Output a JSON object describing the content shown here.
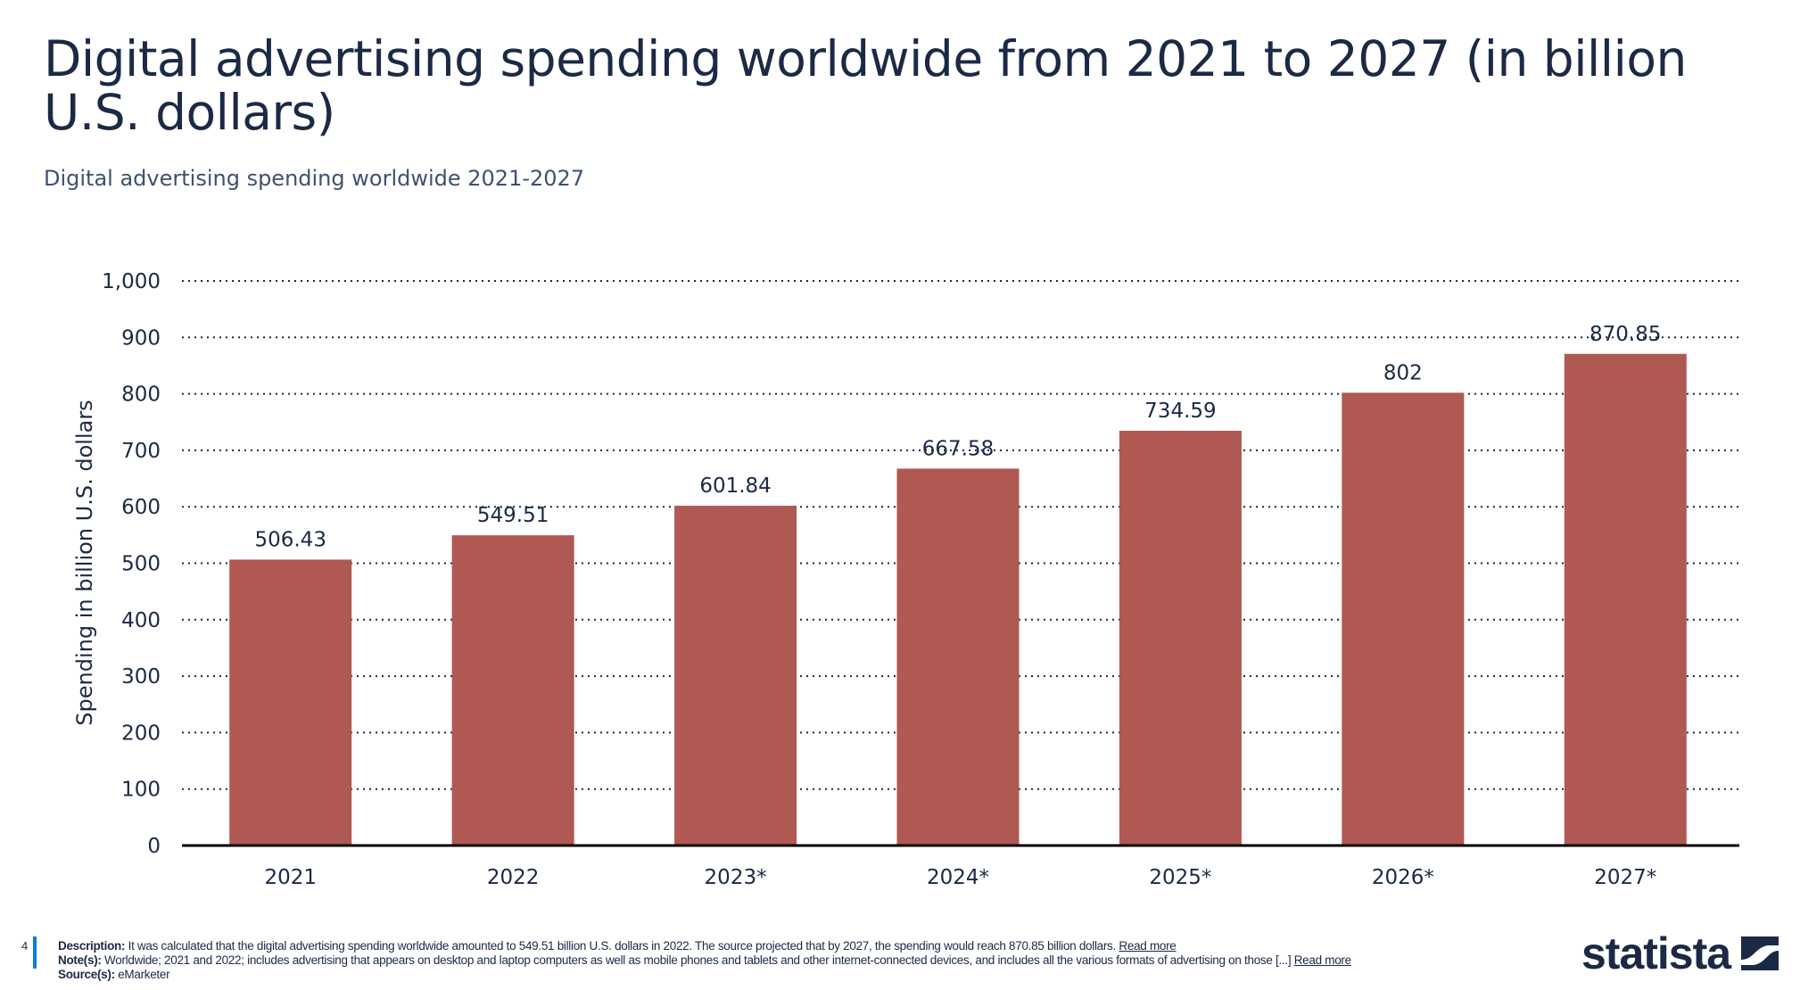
{
  "header": {
    "title": "Digital advertising spending worldwide from 2021 to 2027 (in billion U.S. dollars)",
    "subtitle": "Digital advertising spending worldwide 2021-2027"
  },
  "chart_data": {
    "type": "bar",
    "categories": [
      "2021",
      "2022",
      "2023*",
      "2024*",
      "2025*",
      "2026*",
      "2027*"
    ],
    "values": [
      506.43,
      549.51,
      601.84,
      667.58,
      734.59,
      802,
      870.85
    ],
    "value_labels": [
      "506.43",
      "549.51",
      "601.84",
      "667.58",
      "734.59",
      "802",
      "870.85"
    ],
    "ylabel": "Spending in billion U.S. dollars",
    "xlabel": "",
    "ylim": [
      0,
      1000
    ],
    "yticks": [
      0,
      100,
      200,
      300,
      400,
      500,
      600,
      700,
      800,
      900,
      1000
    ],
    "ytick_labels": [
      "0",
      "100",
      "200",
      "300",
      "400",
      "500",
      "600",
      "700",
      "800",
      "900",
      "1,000"
    ],
    "grid": true,
    "bar_color": "#b05852"
  },
  "footer": {
    "page_number": "4",
    "description_label": "Description:",
    "description": " It was calculated that the digital advertising spending worldwide amounted to 549.51 billion U.S. dollars in 2022. The source projected that by 2027, the spending would reach 870.85 billion dollars. ",
    "notes_label": "Note(s):",
    "notes": " Worldwide; 2021 and 2022; includes advertising that appears on desktop and laptop computers as well as mobile phones and tablets and other internet-connected devices, and includes all the various formats of advertising on those [...] ",
    "sources_label": "Source(s):",
    "sources": " eMarketer",
    "read_more": "Read more"
  },
  "logo": {
    "text": "statista",
    "icon": "statista-logo-icon"
  }
}
